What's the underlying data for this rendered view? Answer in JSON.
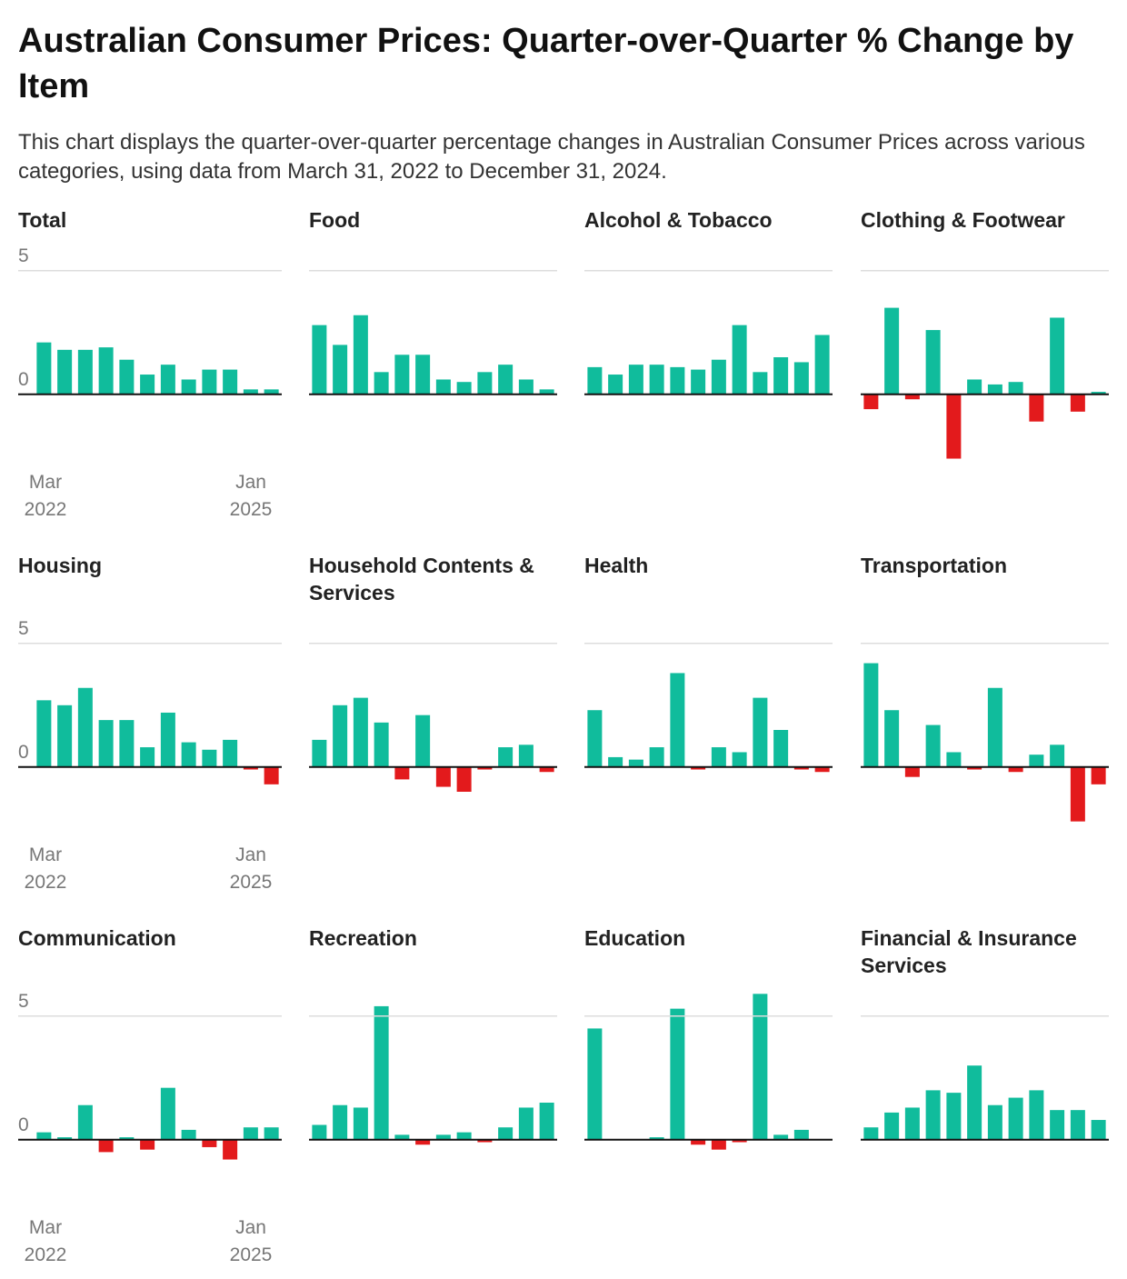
{
  "title": "Australian Consumer Prices: Quarter-over-Quarter % Change by Item",
  "subtitle": "This chart displays the quarter-over-quarter percentage changes in Australian Consumer Prices across various categories, using data from March 31, 2022 to December 31, 2024.",
  "chart_data": [
    {
      "type": "bar",
      "title": "Total",
      "categories": [
        "Mar 2022",
        null,
        null,
        null,
        null,
        null,
        null,
        null,
        null,
        null,
        null,
        "Jan 2025"
      ],
      "values": [
        2.1,
        1.8,
        1.8,
        1.9,
        1.4,
        0.8,
        1.2,
        0.6,
        1.0,
        1.0,
        0.2,
        0.2
      ],
      "color": "#10bc9c",
      "negative_color": "#e31a1c",
      "ylim": [
        -3.5,
        6.5
      ],
      "yticks": [
        0,
        5
      ],
      "grid": true
    },
    {
      "type": "bar",
      "title": "Food",
      "values": [
        2.8,
        2.0,
        3.2,
        0.9,
        1.6,
        1.6,
        0.6,
        0.5,
        0.9,
        1.2,
        0.6,
        0.2
      ],
      "color": "#10bc9c",
      "negative_color": "#e31a1c",
      "ylim": [
        -3.5,
        6.5
      ],
      "yticks": [
        0,
        5
      ],
      "grid": true
    },
    {
      "type": "bar",
      "title": "Alcohol & Tobacco",
      "values": [
        1.1,
        0.8,
        1.2,
        1.2,
        1.1,
        1.0,
        1.4,
        2.8,
        0.9,
        1.5,
        1.3,
        2.4
      ],
      "color": "#10bc9c",
      "negative_color": "#e31a1c",
      "ylim": [
        -3.5,
        6.5
      ],
      "yticks": [
        0,
        5
      ],
      "grid": true
    },
    {
      "type": "bar",
      "title": "Clothing & Footwear",
      "values": [
        -0.6,
        3.5,
        -0.2,
        2.6,
        -2.6,
        0.6,
        0.4,
        0.5,
        -1.1,
        3.1,
        -0.7,
        0.1
      ],
      "color": "#10bc9c",
      "negative_color": "#e31a1c",
      "ylim": [
        -3.5,
        6.5
      ],
      "yticks": [
        0,
        5
      ],
      "grid": true
    },
    {
      "type": "bar",
      "title": "Housing",
      "categories": [
        "Mar 2022",
        null,
        null,
        null,
        null,
        null,
        null,
        null,
        null,
        null,
        null,
        "Jan 2025"
      ],
      "values": [
        2.7,
        2.5,
        3.2,
        1.9,
        1.9,
        0.8,
        2.2,
        1.0,
        0.7,
        1.1,
        -0.1,
        -0.7
      ],
      "color": "#10bc9c",
      "negative_color": "#e31a1c",
      "ylim": [
        -3.5,
        6.5
      ],
      "yticks": [
        0,
        5
      ],
      "grid": true
    },
    {
      "type": "bar",
      "title": "Household Contents & Services",
      "values": [
        1.1,
        2.5,
        2.8,
        1.8,
        -0.5,
        2.1,
        -0.8,
        -1.0,
        -0.1,
        0.8,
        0.9,
        -0.2
      ],
      "color": "#10bc9c",
      "negative_color": "#e31a1c",
      "ylim": [
        -3.5,
        6.5
      ],
      "yticks": [
        0,
        5
      ],
      "grid": true
    },
    {
      "type": "bar",
      "title": "Health",
      "values": [
        2.3,
        0.4,
        0.3,
        0.8,
        3.8,
        -0.1,
        0.8,
        0.6,
        2.8,
        1.5,
        -0.1,
        -0.2
      ],
      "color": "#10bc9c",
      "negative_color": "#e31a1c",
      "ylim": [
        -3.5,
        6.5
      ],
      "yticks": [
        0,
        5
      ],
      "grid": true
    },
    {
      "type": "bar",
      "title": "Transportation",
      "values": [
        4.2,
        2.3,
        -0.4,
        1.7,
        0.6,
        -0.1,
        3.2,
        -0.2,
        0.5,
        0.9,
        -2.2,
        -0.7
      ],
      "color": "#10bc9c",
      "negative_color": "#e31a1c",
      "ylim": [
        -3.5,
        6.5
      ],
      "yticks": [
        0,
        5
      ],
      "grid": true
    },
    {
      "type": "bar",
      "title": "Communication",
      "categories": [
        "Mar 2022",
        null,
        null,
        null,
        null,
        null,
        null,
        null,
        null,
        null,
        null,
        "Jan 2025"
      ],
      "values": [
        0.3,
        0.1,
        1.4,
        -0.5,
        0.1,
        -0.4,
        2.1,
        0.4,
        -0.3,
        -0.8,
        0.5,
        0.5
      ],
      "color": "#10bc9c",
      "negative_color": "#e31a1c",
      "ylim": [
        -3.5,
        6.5
      ],
      "yticks": [
        0,
        5
      ],
      "grid": true
    },
    {
      "type": "bar",
      "title": "Recreation",
      "values": [
        0.6,
        1.4,
        1.3,
        5.4,
        0.2,
        -0.2,
        0.2,
        0.3,
        -0.1,
        0.5,
        1.3,
        1.5
      ],
      "color": "#10bc9c",
      "negative_color": "#e31a1c",
      "ylim": [
        -3.5,
        6.5
      ],
      "yticks": [
        0,
        5
      ],
      "grid": true
    },
    {
      "type": "bar",
      "title": "Education",
      "values": [
        4.5,
        0,
        0,
        0.1,
        5.3,
        -0.2,
        -0.4,
        -0.1,
        5.9,
        0.2,
        0.4,
        0
      ],
      "color": "#10bc9c",
      "negative_color": "#e31a1c",
      "ylim": [
        -3.5,
        6.5
      ],
      "yticks": [
        0,
        5
      ],
      "grid": true
    },
    {
      "type": "bar",
      "title": "Financial & Insurance Services",
      "values": [
        0.5,
        1.1,
        1.3,
        2.0,
        1.9,
        3.0,
        1.4,
        1.7,
        2.0,
        1.2,
        1.2,
        0.8
      ],
      "color": "#10bc9c",
      "negative_color": "#e31a1c",
      "ylim": [
        -3.5,
        6.5
      ],
      "yticks": [
        0,
        5
      ],
      "grid": true
    }
  ]
}
